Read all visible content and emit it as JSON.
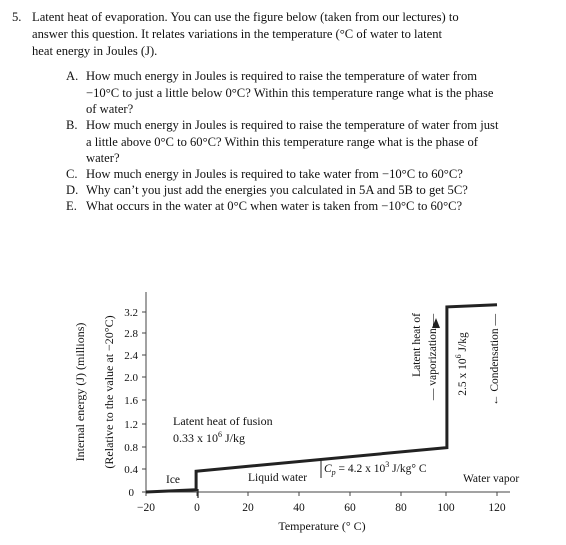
{
  "question": {
    "number": "5.",
    "intro": [
      "Latent heat of evaporation.  You can use the figure below (taken from our lectures) to",
      "answer this question.  It relates variations in the temperature (°C of water to latent",
      "heat energy in Joules (J)."
    ],
    "items": [
      {
        "letter": "A.",
        "lines": [
          "How much energy in Joules is required to raise the temperature of water from",
          "−10°C to just a little below 0°C?  Within this temperature range what is the phase",
          "of water?"
        ]
      },
      {
        "letter": "B.",
        "lines": [
          "How much energy in Joules is required to raise the temperature of water from just",
          "a little above 0°C to 60°C?  Within this temperature range what is the phase of",
          "water?"
        ]
      },
      {
        "letter": "C.",
        "lines": [
          "How much energy in Joules is required to take water from −10°C to 60°C?"
        ]
      },
      {
        "letter": "D.",
        "lines": [
          "Why can’t you just add the energies you calculated in 5A and 5B to get 5C?"
        ]
      },
      {
        "letter": "E.",
        "lines": [
          "What occurs in the water at 0°C when water is taken from −10°C to 60°C?"
        ]
      }
    ]
  },
  "figure": {
    "ylabel_main": "Internal energy (J) (millions)",
    "ylabel_sub": "(Relative to the value at −20°C)",
    "xlabel": "Temperature (° C)",
    "yticks": [
      "3.2",
      "2.8",
      "2.4",
      "2.0",
      "1.6",
      "1.2",
      "0.8",
      "0.4",
      "0"
    ],
    "xticks": [
      "−20",
      "0",
      "20",
      "40",
      "60",
      "80",
      "100",
      "120"
    ],
    "annotations": {
      "fusion_line1": "Latent heat of fusion",
      "fusion_line2": "0.33 x 10",
      "fusion_exp": "6",
      "fusion_unit": " J/kg",
      "ice": "Ice",
      "liquid": "Liquid water",
      "cp_prefix": "C",
      "cp_sub": "p",
      "cp_mid": " = 4.2 x 10",
      "cp_exp": "3",
      "cp_unit": " J/kg° C",
      "vapor": "Water vapor",
      "vap_line1": "Latent heat of",
      "vap_line2": "vaporization",
      "vap_value": "2.5 x 10",
      "vap_exp": "6",
      "vap_unit": " J/kg",
      "condensation": "Condensation"
    },
    "chart_data": {
      "type": "line",
      "x": [
        -20,
        0,
        0,
        100,
        100,
        120
      ],
      "y": [
        0,
        0.04,
        0.37,
        0.79,
        3.29,
        3.33
      ],
      "xlim": [
        -20,
        120
      ],
      "ylim": [
        0,
        3.2
      ]
    }
  }
}
